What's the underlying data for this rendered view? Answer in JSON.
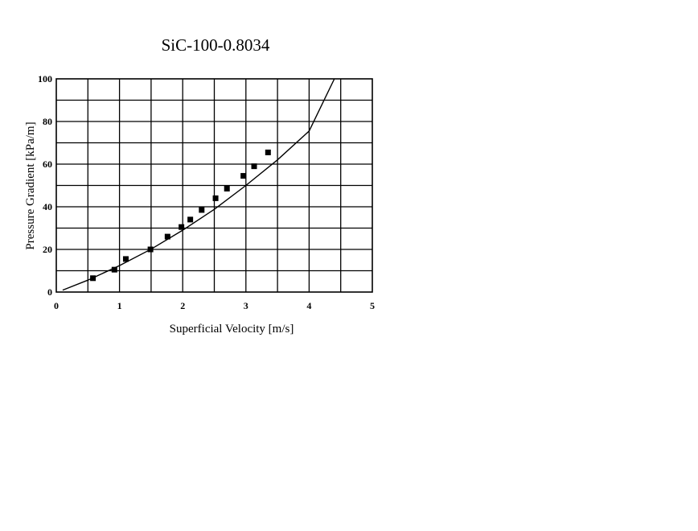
{
  "chart_data": {
    "type": "scatter",
    "title": "SiC-100-0.8034",
    "xlabel": "Superficial Velocity [m/s]",
    "ylabel": "Pressure Gradient [kPa/m]",
    "xlim": [
      0,
      5
    ],
    "ylim": [
      0,
      100
    ],
    "xticks": [
      "0",
      "1",
      "2",
      "3",
      "4",
      "5"
    ],
    "yticks": [
      "0",
      "20",
      "40",
      "60",
      "80",
      "100"
    ],
    "grid": true,
    "series": [
      {
        "kind": "markers",
        "marker": "square",
        "x": [
          0.58,
          0.92,
          1.1,
          1.49,
          1.76,
          1.98,
          2.12,
          2.3,
          2.52,
          2.7,
          2.96,
          3.13,
          3.35
        ],
        "y": [
          6.5,
          10.5,
          15.5,
          20,
          26,
          30.5,
          34,
          38.5,
          44,
          48.5,
          54.5,
          59,
          65.5
        ]
      },
      {
        "kind": "fit-line",
        "x": [
          0.1,
          0.5,
          1.0,
          1.5,
          2.0,
          2.5,
          3.0,
          3.5,
          4.0,
          4.4
        ],
        "y": [
          0.9,
          5.6,
          12.4,
          20.1,
          29.0,
          38.8,
          50.0,
          62.0,
          75.5,
          100
        ]
      }
    ]
  }
}
